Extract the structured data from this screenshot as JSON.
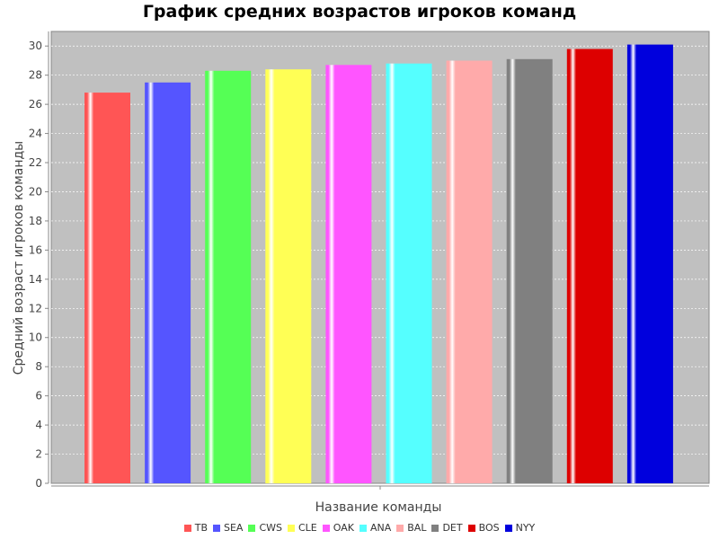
{
  "chart_data": {
    "type": "bar",
    "title": "График средних возрастов игроков команд",
    "xlabel": "Название команды",
    "ylabel": "Средний возраст игроков команды",
    "ylim": [
      0,
      31
    ],
    "yticks": [
      0,
      2,
      4,
      6,
      8,
      10,
      12,
      14,
      16,
      18,
      20,
      22,
      24,
      26,
      28,
      30
    ],
    "grid": true,
    "legend_position": "bottom",
    "series": [
      {
        "name": "TB",
        "value": 26.8,
        "color": "#ff5555"
      },
      {
        "name": "SEA",
        "value": 27.5,
        "color": "#5555ff"
      },
      {
        "name": "CWS",
        "value": 28.3,
        "color": "#55ff55"
      },
      {
        "name": "CLE",
        "value": 28.4,
        "color": "#ffff55"
      },
      {
        "name": "OAK",
        "value": 28.7,
        "color": "#ff55ff"
      },
      {
        "name": "ANA",
        "value": 28.8,
        "color": "#55ffff"
      },
      {
        "name": "BAL",
        "value": 29.0,
        "color": "#ffaaaa"
      },
      {
        "name": "DET",
        "value": 29.1,
        "color": "#808080"
      },
      {
        "name": "BOS",
        "value": 29.8,
        "color": "#dd0000"
      },
      {
        "name": "NYY",
        "value": 30.1,
        "color": "#0000dd"
      }
    ]
  }
}
